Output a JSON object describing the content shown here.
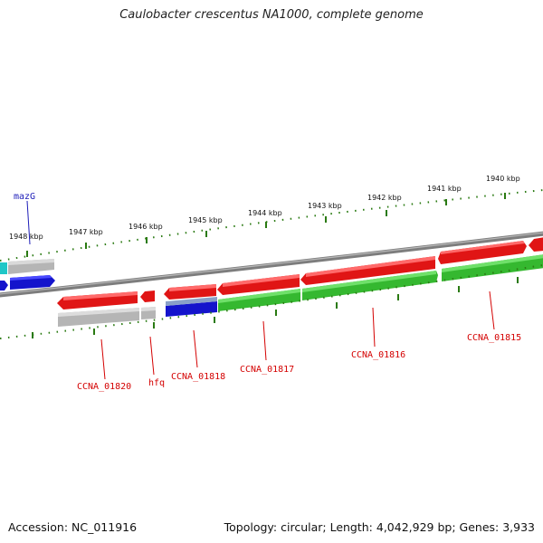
{
  "title": "Caulobacter crescentus NA1000, complete genome",
  "footer": {
    "accession": "Accession: NC_011916",
    "stats": "Topology: circular; Length: 4,042,929 bp; Genes: 3,933"
  },
  "colors": {
    "backbone": "#8a8a8a",
    "ruler": "#2a7a12",
    "forward_cds": "#e01515",
    "reverse_cds": "#35b830",
    "gene": "#b5b5b5",
    "rna": "#1414cc",
    "other": "#1fc7c7",
    "label_red": "#d40000",
    "label_blue": "#1d1db8"
  },
  "ruler_labels": [
    "1948 kbp",
    "1947 kbp",
    "1946 kbp",
    "1945 kbp",
    "1944 kbp",
    "1943 kbp",
    "1942 kbp",
    "1941 kbp",
    "1940 kbp"
  ],
  "gene_labels": [
    "mazG",
    "CCNA_01820",
    "hfq",
    "CCNA_01818",
    "CCNA_01817",
    "CCNA_01816",
    "CCNA_01815"
  ]
}
